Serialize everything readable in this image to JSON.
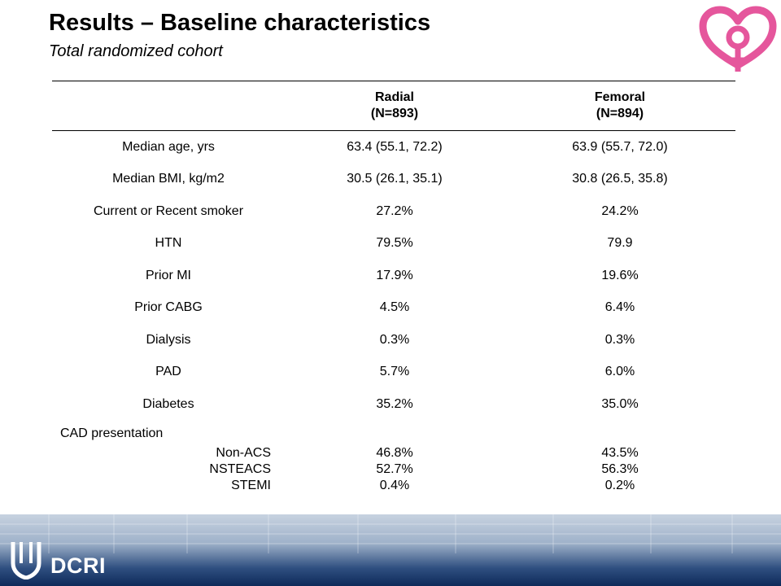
{
  "slide": {
    "title": "Results – Baseline characteristics",
    "subtitle": "Total randomized cohort"
  },
  "colors": {
    "logo_pink": "#e5569c",
    "footer_navy": "#0e2a5a"
  },
  "logo": {
    "icon": "heart-female-symbol-icon"
  },
  "table": {
    "headers": [
      {
        "line1": "",
        "line2": ""
      },
      {
        "line1": "Radial",
        "line2": "(N=893)"
      },
      {
        "line1": "Femoral",
        "line2": "(N=894)"
      }
    ],
    "rows": [
      {
        "label": "Median age, yrs",
        "radial": "63.4 (55.1, 72.2)",
        "femoral": "63.9 (55.7, 72.0)"
      },
      {
        "label": "Median BMI, kg/m2",
        "radial": "30.5 (26.1, 35.1)",
        "femoral": "30.8 (26.5, 35.8)"
      },
      {
        "label": "Current or Recent smoker",
        "radial": "27.2%",
        "femoral": "24.2%"
      },
      {
        "label": "HTN",
        "radial": "79.5%",
        "femoral": "79.9"
      },
      {
        "label": "Prior MI",
        "radial": "17.9%",
        "femoral": "19.6%"
      },
      {
        "label": "Prior CABG",
        "radial": "4.5%",
        "femoral": "6.4%"
      },
      {
        "label": "Dialysis",
        "radial": "0.3%",
        "femoral": "0.3%"
      },
      {
        "label": "PAD",
        "radial": "5.7%",
        "femoral": "6.0%"
      },
      {
        "label": "Diabetes",
        "radial": "35.2%",
        "femoral": "35.0%"
      }
    ],
    "cad": {
      "label": "CAD presentation",
      "subrows": [
        {
          "label": "Non-ACS",
          "radial": "46.8%",
          "femoral": "43.5%"
        },
        {
          "label": "NSTEACS",
          "radial": "52.7%",
          "femoral": "56.3%"
        },
        {
          "label": "STEMI",
          "radial": "0.4%",
          "femoral": "0.2%"
        }
      ]
    }
  },
  "footer": {
    "brand": "DCRI",
    "brand_icon": "duke-shield-icon"
  }
}
